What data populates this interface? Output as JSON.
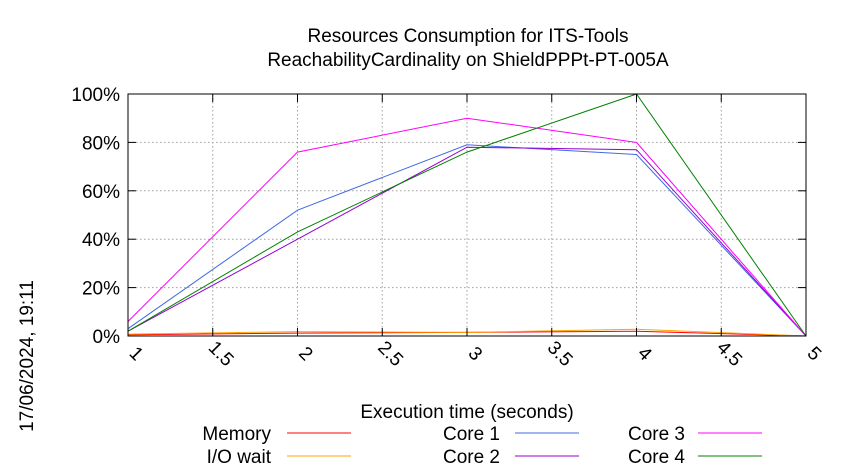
{
  "chart_data": {
    "type": "line",
    "title": [
      "Resources Consumption for ITS-Tools",
      "ReachabilityCardinality on ShieldPPPt-PT-005A"
    ],
    "xlabel": "Execution time (seconds)",
    "ylabel": "",
    "xlim": [
      1,
      5
    ],
    "ylim": [
      0,
      100
    ],
    "x_ticks": [
      "1",
      "1.5",
      "2",
      "2.5",
      "3",
      "3.5",
      "4",
      "4.5",
      "5"
    ],
    "y_ticks": [
      "0%",
      "20%",
      "40%",
      "60%",
      "80%",
      "100%"
    ],
    "grid": true,
    "legend_position": "bottom",
    "x": [
      1,
      2,
      3,
      4,
      5
    ],
    "series": [
      {
        "name": "Memory",
        "color": "#ff0000",
        "values": [
          0.5,
          1.2,
          1.5,
          2.0,
          0
        ]
      },
      {
        "name": "I/O wait",
        "color": "#ffa500",
        "values": [
          0.8,
          1.8,
          1.5,
          2.8,
          0
        ]
      },
      {
        "name": "Core 1",
        "color": "#4169e1",
        "values": [
          3,
          52,
          79,
          75,
          0
        ]
      },
      {
        "name": "Core 2",
        "color": "#9400d3",
        "values": [
          2,
          40,
          78,
          77,
          0
        ]
      },
      {
        "name": "Core 3",
        "color": "#ff00ff",
        "values": [
          6,
          76,
          90,
          80,
          0
        ]
      },
      {
        "name": "Core 4",
        "color": "#008000",
        "values": [
          2,
          43,
          76,
          100,
          0
        ]
      }
    ]
  },
  "timestamp": "17/06/2024, 19:11"
}
